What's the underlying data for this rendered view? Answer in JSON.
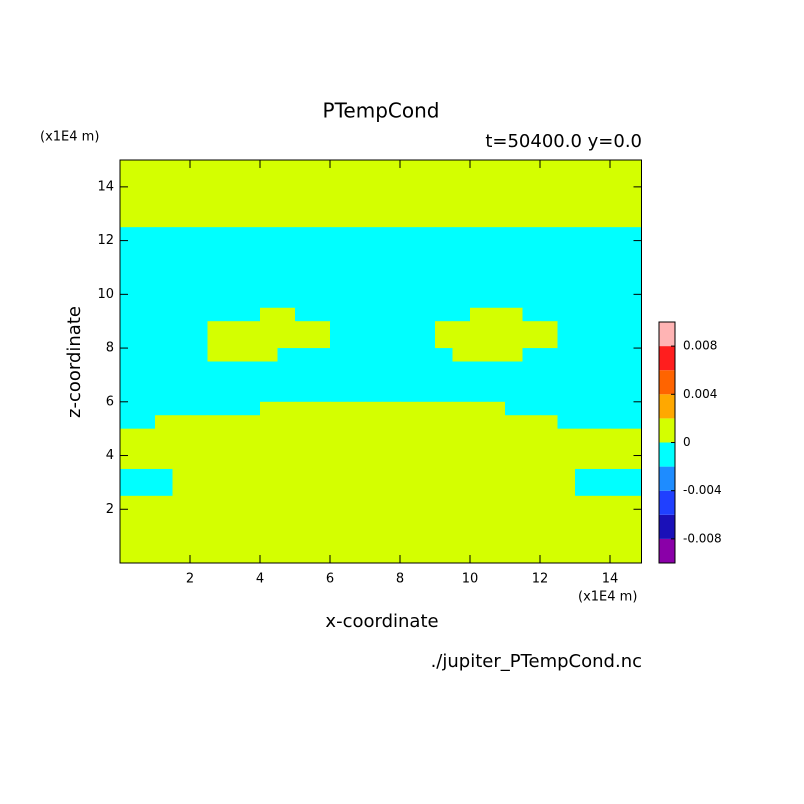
{
  "chart_data": {
    "type": "contour",
    "title": "PTempCond",
    "subtitle": "t=50400.0 y=0.0",
    "xlabel": "x-coordinate",
    "ylabel": "z-coordinate",
    "xunit": "(x1E4 m)",
    "yunit": "(x1E4 m)",
    "source": "./jupiter_PTempCond.nc",
    "xlim": [
      0,
      14.9
    ],
    "ylim": [
      0,
      15
    ],
    "xticks": [
      2,
      4,
      6,
      8,
      10,
      12,
      14
    ],
    "yticks": [
      2,
      4,
      6,
      8,
      10,
      12,
      14
    ],
    "levels": [
      -0.01,
      -0.008,
      -0.006,
      -0.004,
      -0.002,
      0,
      0.002,
      0.004,
      0.006,
      0.008,
      0.01
    ],
    "colors": [
      "#8a00a8",
      "#1a10b8",
      "#2040ff",
      "#1e8cff",
      "#00ffff",
      "#d4ff00",
      "#ffa800",
      "#ff6400",
      "#ff1e1e",
      "#ffb4b4"
    ],
    "cbticks": [
      -0.008,
      -0.004,
      0,
      0.004,
      0.008
    ],
    "x": [
      0.25,
      0.75,
      1.25,
      1.75,
      2.25,
      2.75,
      3.25,
      3.75,
      4.25,
      4.75,
      5.25,
      5.75,
      6.25,
      6.75,
      7.25,
      7.75,
      8.25,
      8.75,
      9.25,
      9.75,
      10.25,
      10.75,
      11.25,
      11.75,
      12.25,
      12.75,
      13.25,
      13.75,
      14.25,
      14.75
    ],
    "y": [
      14.75,
      14.25,
      13.75,
      13.25,
      12.75,
      12.25,
      11.75,
      11.25,
      10.75,
      10.25,
      9.75,
      9.25,
      8.75,
      8.25,
      7.75,
      7.25,
      6.75,
      6.25,
      5.75,
      5.25,
      4.75,
      4.25,
      3.75,
      3.25,
      2.75,
      2.25,
      1.75,
      1.25,
      0.75,
      0.25
    ],
    "z": [
      [
        0.001,
        0.001,
        0.001,
        0.001,
        0.001,
        0.001,
        0.001,
        0.001,
        0.001,
        0.001,
        0.001,
        0.001,
        0.001,
        0.001,
        0.001,
        0.001,
        0.001,
        0.001,
        0.001,
        0.001,
        0.001,
        0.001,
        0.001,
        0.001,
        0.001,
        0.001,
        0.001,
        0.001,
        0.001,
        0.001
      ],
      [
        0.001,
        0.001,
        0.001,
        0.001,
        0.001,
        0.001,
        0.001,
        0.001,
        0.001,
        0.001,
        0.001,
        0.001,
        0.001,
        0.001,
        0.001,
        0.001,
        0.001,
        0.001,
        0.001,
        0.001,
        0.001,
        0.001,
        0.001,
        0.001,
        0.001,
        0.001,
        0.001,
        0.001,
        0.001,
        0.001
      ],
      [
        0.001,
        0.001,
        0.001,
        0.001,
        0.001,
        0.001,
        0.001,
        0.001,
        0.001,
        0.001,
        0.001,
        0.001,
        0.001,
        0.001,
        0.001,
        0.001,
        0.001,
        0.001,
        0.001,
        0.001,
        0.001,
        0.001,
        0.001,
        0.001,
        0.001,
        0.001,
        0.001,
        0.001,
        0.001,
        0.001
      ],
      [
        0.001,
        0.001,
        0.001,
        0.001,
        0.001,
        0.001,
        0.001,
        0.001,
        0.001,
        0.001,
        0.001,
        0.001,
        0.001,
        0.001,
        0.001,
        0.001,
        0.001,
        0.001,
        0.001,
        0.001,
        0.001,
        0.001,
        0.001,
        0.001,
        0.001,
        0.001,
        0.001,
        0.001,
        0.001,
        0.001
      ],
      [
        0.001,
        0.001,
        0.001,
        0.001,
        0.001,
        0.001,
        0.001,
        0.001,
        0.001,
        0.001,
        0.001,
        0.001,
        0.001,
        0.001,
        0.001,
        0.001,
        0.001,
        0.001,
        0.001,
        0.001,
        0.001,
        0.001,
        0.001,
        0.001,
        0.001,
        0.001,
        0.001,
        0.001,
        0.001,
        0.001
      ],
      [
        -0.001,
        -0.001,
        -0.001,
        -0.001,
        -0.001,
        -0.001,
        -0.001,
        -0.001,
        -0.001,
        -0.001,
        -0.001,
        -0.001,
        -0.001,
        -0.001,
        -0.001,
        -0.001,
        -0.001,
        -0.001,
        -0.001,
        -0.001,
        -0.001,
        -0.001,
        -0.001,
        -0.001,
        -0.001,
        -0.001,
        -0.001,
        -0.001,
        -0.001,
        -0.001
      ],
      [
        -0.001,
        -0.001,
        -0.001,
        -0.001,
        -0.001,
        -0.001,
        -0.001,
        -0.001,
        -0.001,
        -0.001,
        -0.001,
        -0.001,
        -0.001,
        -0.001,
        -0.001,
        -0.001,
        -0.001,
        -0.001,
        -0.001,
        -0.001,
        -0.001,
        -0.001,
        -0.001,
        -0.001,
        -0.001,
        -0.001,
        -0.001,
        -0.001,
        -0.001,
        -0.001
      ],
      [
        -0.001,
        -0.001,
        -0.001,
        -0.001,
        -0.001,
        -0.001,
        -0.001,
        -0.001,
        -0.001,
        -0.001,
        -0.001,
        -0.001,
        -0.001,
        -0.001,
        -0.001,
        -0.001,
        -0.001,
        -0.001,
        -0.001,
        -0.001,
        -0.001,
        -0.001,
        -0.001,
        -0.001,
        -0.001,
        -0.001,
        -0.001,
        -0.001,
        -0.001,
        -0.001
      ],
      [
        -0.001,
        -0.001,
        -0.001,
        -0.001,
        -0.001,
        -0.001,
        -0.001,
        -0.001,
        -0.001,
        -0.001,
        -0.001,
        -0.001,
        -0.001,
        -0.001,
        -0.001,
        -0.001,
        -0.001,
        -0.001,
        -0.001,
        -0.001,
        -0.001,
        -0.001,
        -0.001,
        -0.001,
        -0.001,
        -0.001,
        -0.001,
        -0.001,
        -0.001,
        -0.001
      ],
      [
        -0.001,
        -0.001,
        -0.001,
        -0.001,
        -0.001,
        -0.001,
        -0.001,
        -0.001,
        -0.001,
        -0.001,
        -0.001,
        -0.001,
        -0.001,
        -0.001,
        -0.001,
        -0.001,
        -0.001,
        -0.001,
        -0.001,
        -0.001,
        -0.001,
        -0.001,
        -0.001,
        -0.001,
        -0.001,
        -0.001,
        -0.001,
        -0.001,
        -0.001,
        -0.001
      ],
      [
        -0.001,
        -0.001,
        -0.001,
        -0.001,
        -0.001,
        -0.001,
        -0.001,
        -0.001,
        -0.001,
        -0.001,
        -0.001,
        -0.001,
        -0.001,
        -0.001,
        -0.001,
        -0.001,
        -0.001,
        -0.001,
        -0.001,
        -0.001,
        -0.001,
        -0.001,
        -0.001,
        -0.001,
        -0.001,
        -0.001,
        -0.001,
        -0.001,
        -0.001,
        -0.001
      ],
      [
        -0.001,
        -0.001,
        -0.001,
        -0.001,
        -0.001,
        -0.001,
        -0.001,
        -0.001,
        0.001,
        0.001,
        -0.001,
        -0.001,
        -0.001,
        -0.001,
        -0.001,
        -0.001,
        -0.001,
        -0.001,
        -0.001,
        -0.001,
        0.001,
        0.001,
        0.001,
        -0.001,
        -0.001,
        -0.001,
        -0.001,
        -0.001,
        -0.001,
        -0.001
      ],
      [
        -0.001,
        -0.001,
        -0.001,
        -0.001,
        -0.001,
        0.001,
        0.001,
        0.001,
        0.001,
        0.001,
        0.001,
        0.001,
        -0.001,
        -0.001,
        -0.001,
        -0.001,
        -0.001,
        -0.001,
        0.001,
        0.001,
        0.001,
        0.001,
        0.001,
        0.001,
        0.001,
        -0.001,
        -0.001,
        -0.001,
        -0.001,
        -0.001
      ],
      [
        -0.001,
        -0.001,
        -0.001,
        -0.001,
        -0.001,
        0.001,
        0.001,
        0.001,
        0.001,
        0.001,
        0.001,
        0.001,
        -0.001,
        -0.001,
        -0.001,
        -0.001,
        -0.001,
        -0.001,
        0.001,
        0.001,
        0.001,
        0.001,
        0.001,
        0.001,
        0.001,
        -0.001,
        -0.001,
        -0.001,
        -0.001,
        -0.001
      ],
      [
        -0.001,
        -0.001,
        -0.001,
        -0.001,
        -0.001,
        0.001,
        0.001,
        0.001,
        0.001,
        -0.001,
        -0.001,
        -0.001,
        -0.001,
        -0.001,
        -0.001,
        -0.001,
        -0.001,
        -0.001,
        -0.001,
        0.001,
        0.001,
        0.001,
        0.001,
        -0.001,
        -0.001,
        -0.001,
        -0.001,
        -0.001,
        -0.001,
        -0.001
      ],
      [
        -0.001,
        -0.001,
        -0.001,
        -0.001,
        -0.001,
        -0.001,
        -0.001,
        -0.001,
        -0.001,
        -0.001,
        -0.001,
        -0.001,
        -0.001,
        -0.001,
        -0.001,
        -0.001,
        -0.001,
        -0.001,
        -0.001,
        -0.001,
        -0.001,
        -0.001,
        -0.001,
        -0.001,
        -0.001,
        -0.001,
        -0.001,
        -0.001,
        -0.001,
        -0.001
      ],
      [
        -0.001,
        -0.001,
        -0.001,
        -0.001,
        -0.001,
        -0.001,
        -0.001,
        -0.001,
        -0.001,
        -0.001,
        -0.001,
        -0.001,
        -0.001,
        -0.001,
        -0.001,
        -0.001,
        -0.001,
        -0.001,
        -0.001,
        -0.001,
        -0.001,
        -0.001,
        -0.001,
        -0.001,
        -0.001,
        -0.001,
        -0.001,
        -0.001,
        -0.001,
        -0.001
      ],
      [
        -0.001,
        -0.001,
        -0.001,
        -0.001,
        -0.001,
        -0.001,
        -0.001,
        -0.001,
        -0.001,
        -0.001,
        -0.001,
        -0.001,
        -0.001,
        -0.001,
        -0.001,
        -0.001,
        -0.001,
        -0.001,
        -0.001,
        -0.001,
        -0.001,
        -0.001,
        -0.001,
        -0.001,
        -0.001,
        -0.001,
        -0.001,
        -0.001,
        -0.001,
        -0.001
      ],
      [
        -0.001,
        -0.001,
        -0.001,
        -0.001,
        -0.001,
        -0.001,
        -0.001,
        -0.001,
        0.001,
        0.001,
        0.001,
        0.001,
        0.001,
        0.001,
        0.001,
        0.001,
        0.001,
        0.001,
        0.001,
        0.001,
        0.001,
        0.001,
        -0.001,
        -0.001,
        -0.001,
        -0.001,
        -0.001,
        -0.001,
        -0.001,
        -0.001
      ],
      [
        -0.001,
        -0.001,
        0.001,
        0.001,
        0.001,
        0.001,
        0.001,
        0.001,
        0.001,
        0.001,
        0.001,
        0.001,
        0.001,
        0.001,
        0.001,
        0.001,
        0.001,
        0.001,
        0.001,
        0.001,
        0.001,
        0.001,
        0.001,
        0.001,
        0.001,
        -0.001,
        -0.001,
        -0.001,
        -0.001,
        -0.001
      ],
      [
        0.001,
        0.001,
        0.001,
        0.001,
        0.001,
        0.001,
        0.001,
        0.001,
        0.001,
        0.001,
        0.001,
        0.001,
        0.001,
        0.001,
        0.001,
        0.001,
        0.001,
        0.001,
        0.001,
        0.001,
        0.001,
        0.001,
        0.001,
        0.001,
        0.001,
        0.001,
        0.001,
        0.001,
        0.001,
        0.001
      ],
      [
        0.001,
        0.001,
        0.001,
        0.001,
        0.001,
        0.001,
        0.001,
        0.001,
        0.001,
        0.001,
        0.001,
        0.001,
        0.001,
        0.001,
        0.001,
        0.001,
        0.001,
        0.001,
        0.001,
        0.001,
        0.001,
        0.001,
        0.001,
        0.001,
        0.001,
        0.001,
        0.001,
        0.001,
        0.001,
        0.001
      ],
      [
        0.001,
        0.001,
        0.001,
        0.001,
        0.001,
        0.001,
        0.001,
        0.001,
        0.001,
        0.001,
        0.001,
        0.001,
        0.001,
        0.001,
        0.001,
        0.001,
        0.001,
        0.001,
        0.001,
        0.001,
        0.001,
        0.001,
        0.001,
        0.001,
        0.001,
        0.001,
        0.001,
        0.001,
        0.001,
        0.001
      ],
      [
        -0.001,
        -0.001,
        -0.001,
        0.001,
        0.001,
        0.001,
        0.001,
        0.001,
        0.001,
        0.001,
        0.001,
        0.001,
        0.001,
        0.001,
        0.001,
        0.001,
        0.001,
        0.001,
        0.001,
        0.001,
        0.001,
        0.001,
        0.001,
        0.001,
        0.001,
        0.001,
        -0.001,
        -0.001,
        -0.001,
        -0.001
      ],
      [
        -0.001,
        -0.001,
        -0.001,
        0.001,
        0.001,
        0.001,
        0.001,
        0.001,
        0.001,
        0.001,
        0.001,
        0.001,
        0.001,
        0.001,
        0.001,
        0.001,
        0.001,
        0.001,
        0.001,
        0.001,
        0.001,
        0.001,
        0.001,
        0.001,
        0.001,
        0.001,
        -0.001,
        -0.001,
        -0.001,
        -0.001
      ],
      [
        0.001,
        0.001,
        0.001,
        0.001,
        0.001,
        0.001,
        0.001,
        0.001,
        0.001,
        0.001,
        0.001,
        0.001,
        0.001,
        0.001,
        0.001,
        0.001,
        0.001,
        0.001,
        0.001,
        0.001,
        0.001,
        0.001,
        0.001,
        0.001,
        0.001,
        0.001,
        0.001,
        0.001,
        0.001,
        0.001
      ],
      [
        0.001,
        0.001,
        0.001,
        0.001,
        0.001,
        0.001,
        0.001,
        0.001,
        0.001,
        0.001,
        0.001,
        0.001,
        0.001,
        0.001,
        0.001,
        0.001,
        0.001,
        0.001,
        0.001,
        0.001,
        0.001,
        0.001,
        0.001,
        0.001,
        0.001,
        0.001,
        0.001,
        0.001,
        0.001,
        0.001
      ],
      [
        0.001,
        0.001,
        0.001,
        0.001,
        0.001,
        0.001,
        0.001,
        0.001,
        0.001,
        0.001,
        0.001,
        0.001,
        0.001,
        0.001,
        0.001,
        0.001,
        0.001,
        0.001,
        0.001,
        0.001,
        0.001,
        0.001,
        0.001,
        0.001,
        0.001,
        0.001,
        0.001,
        0.001,
        0.001,
        0.001
      ],
      [
        0.001,
        0.001,
        0.001,
        0.001,
        0.001,
        0.001,
        0.001,
        0.001,
        0.001,
        0.001,
        0.001,
        0.001,
        0.001,
        0.001,
        0.001,
        0.001,
        0.001,
        0.001,
        0.001,
        0.001,
        0.001,
        0.001,
        0.001,
        0.001,
        0.001,
        0.001,
        0.001,
        0.001,
        0.001,
        0.001
      ],
      [
        0.001,
        0.001,
        0.001,
        0.001,
        0.001,
        0.001,
        0.001,
        0.001,
        0.001,
        0.001,
        0.001,
        0.001,
        0.001,
        0.001,
        0.001,
        0.001,
        0.001,
        0.001,
        0.001,
        0.001,
        0.001,
        0.001,
        0.001,
        0.001,
        0.001,
        0.001,
        0.001,
        0.001,
        0.001,
        0.001
      ]
    ]
  }
}
